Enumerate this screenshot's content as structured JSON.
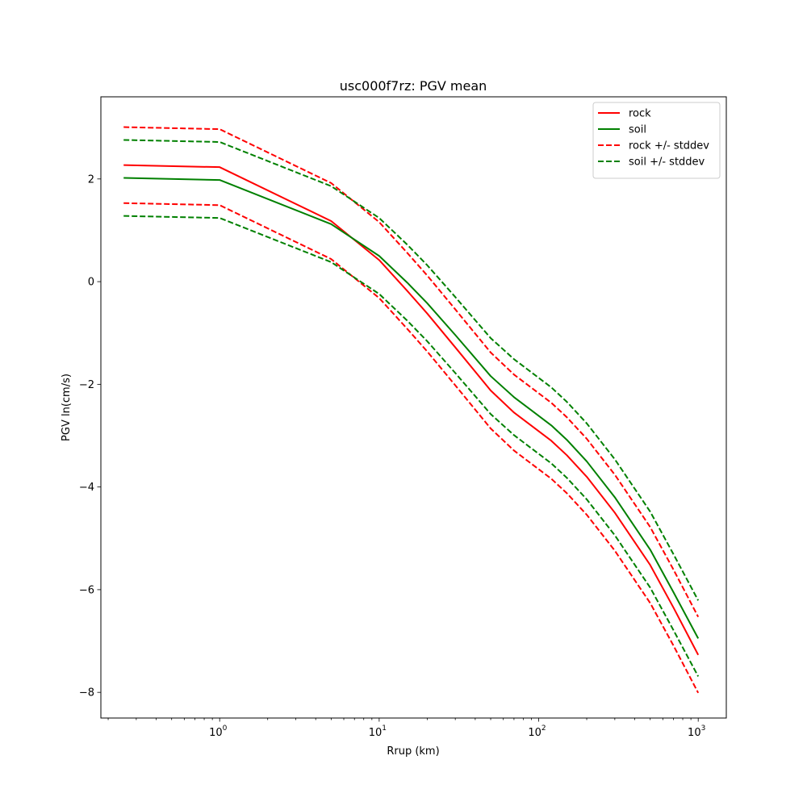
{
  "chart_data": {
    "type": "line",
    "title": "usc000f7rz: PGV mean",
    "xlabel": "Rrup (km)",
    "ylabel": "PGV ln(cm/s)",
    "xscale": "log",
    "xlim": [
      0.18,
      1500
    ],
    "ylim": [
      -8.5,
      3.6
    ],
    "xticks": [
      {
        "value": 1,
        "base": "10",
        "exp": "0"
      },
      {
        "value": 10,
        "base": "10",
        "exp": "1"
      },
      {
        "value": 100,
        "base": "10",
        "exp": "2"
      },
      {
        "value": 1000,
        "base": "10",
        "exp": "3"
      }
    ],
    "yticks": [
      {
        "value": 2,
        "label": "2"
      },
      {
        "value": 0,
        "label": "0"
      },
      {
        "value": -2,
        "label": "−2"
      },
      {
        "value": -4,
        "label": "−4"
      },
      {
        "value": -6,
        "label": "−6"
      },
      {
        "value": -8,
        "label": "−8"
      }
    ],
    "grid": false,
    "legend_position": "top-right",
    "legend": [
      {
        "label": "rock",
        "color": "#ff0000",
        "dashed": false
      },
      {
        "label": "soil",
        "color": "#008000",
        "dashed": false
      },
      {
        "label": "rock +/- stddev",
        "color": "#ff0000",
        "dashed": true
      },
      {
        "label": "soil +/- stddev",
        "color": "#008000",
        "dashed": true
      }
    ],
    "x": [
      0.25,
      1,
      5,
      10,
      15,
      20,
      30,
      50,
      70,
      120,
      150,
      200,
      300,
      500,
      700,
      1000
    ],
    "series": [
      {
        "name": "rock",
        "color": "#ff0000",
        "dashed": false,
        "values": [
          2.27,
          2.23,
          1.18,
          0.42,
          -0.18,
          -0.62,
          -1.28,
          -2.12,
          -2.55,
          -3.1,
          -3.38,
          -3.8,
          -4.5,
          -5.52,
          -6.35,
          -7.27
        ]
      },
      {
        "name": "soil",
        "color": "#008000",
        "dashed": false,
        "values": [
          2.02,
          1.98,
          1.12,
          0.5,
          -0.02,
          -0.42,
          -1.04,
          -1.84,
          -2.25,
          -2.8,
          -3.08,
          -3.5,
          -4.2,
          -5.22,
          -6.05,
          -6.95
        ]
      },
      {
        "name": "rock + stddev",
        "color": "#ff0000",
        "dashed": true,
        "values": [
          3.01,
          2.97,
          1.92,
          1.16,
          0.56,
          0.12,
          -0.54,
          -1.38,
          -1.81,
          -2.36,
          -2.64,
          -3.06,
          -3.76,
          -4.78,
          -5.61,
          -6.53
        ]
      },
      {
        "name": "rock - stddev",
        "color": "#ff0000",
        "dashed": true,
        "values": [
          1.53,
          1.49,
          0.44,
          -0.32,
          -0.92,
          -1.36,
          -2.02,
          -2.86,
          -3.29,
          -3.84,
          -4.12,
          -4.54,
          -5.24,
          -6.26,
          -7.09,
          -8.01
        ]
      },
      {
        "name": "soil + stddev",
        "color": "#008000",
        "dashed": true,
        "values": [
          2.76,
          2.72,
          1.86,
          1.24,
          0.72,
          0.32,
          -0.3,
          -1.1,
          -1.51,
          -2.06,
          -2.34,
          -2.76,
          -3.46,
          -4.48,
          -5.31,
          -6.21
        ]
      },
      {
        "name": "soil - stddev",
        "color": "#008000",
        "dashed": true,
        "values": [
          1.28,
          1.24,
          0.38,
          -0.24,
          -0.76,
          -1.16,
          -1.78,
          -2.58,
          -2.99,
          -3.54,
          -3.82,
          -4.24,
          -4.94,
          -5.96,
          -6.79,
          -7.69
        ]
      }
    ]
  }
}
